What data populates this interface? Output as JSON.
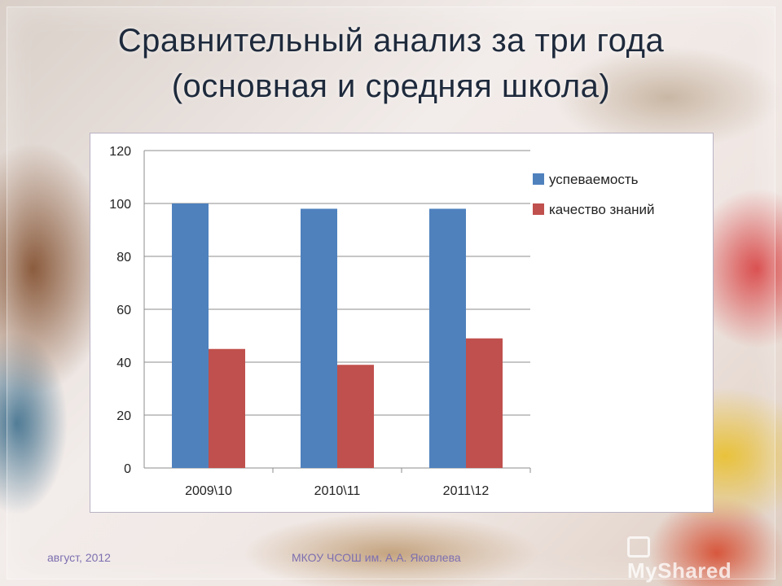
{
  "slide": {
    "title_line1": "Сравнительный анализ за три года",
    "title_line2": "(основная и средняя школа)",
    "footer_date": "август, 2012",
    "footer_org": "МКОУ ЧСОШ им. А.А. Яковлева",
    "brand": "MyShared"
  },
  "chart_data": {
    "type": "bar",
    "title": "",
    "xlabel": "",
    "ylabel": "",
    "categories": [
      "2009\\10",
      "2010\\11",
      "2011\\12"
    ],
    "series": [
      {
        "name": "успеваемость",
        "color": "#4f81bd",
        "values": [
          100,
          98,
          98
        ]
      },
      {
        "name": "качество знаний",
        "color": "#c0504d",
        "values": [
          45,
          39,
          49
        ]
      }
    ],
    "ylim": [
      0,
      120
    ],
    "yticks": [
      0,
      20,
      40,
      60,
      80,
      100,
      120
    ],
    "grid": true,
    "legend": "right"
  }
}
